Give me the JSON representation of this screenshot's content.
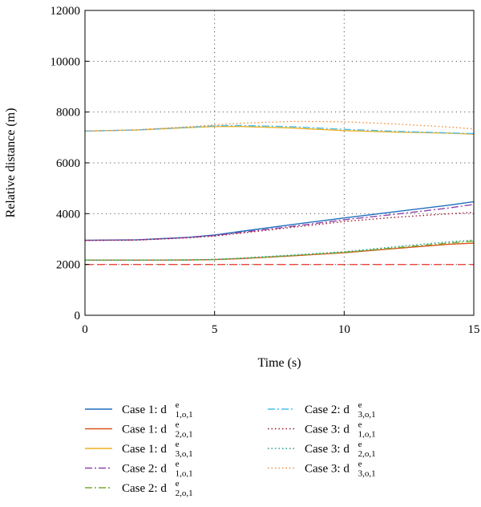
{
  "chart_data": {
    "type": "line",
    "xlabel": "Time (s)",
    "ylabel": "Relative distance (m)",
    "xlim": [
      0,
      15
    ],
    "ylim": [
      0,
      12000
    ],
    "x_ticks": [
      "0",
      "5",
      "10",
      "15"
    ],
    "y_ticks": [
      "0",
      "2000",
      "4000",
      "6000",
      "8000",
      "10000",
      "12000"
    ],
    "grid": "dotted, on major ticks",
    "legend": "below plot, two columns",
    "series": [
      {
        "name": "Case 1: d^e_{1,o,1}",
        "label_prefix": "Case 1: d",
        "label_sup": "e",
        "label_sub": "1,o,1",
        "color": "#1f6fbf",
        "dash": "solid",
        "x": [
          0,
          2,
          4,
          5,
          6,
          8,
          10,
          12,
          14,
          15
        ],
        "y": [
          2950,
          2970,
          3070,
          3160,
          3300,
          3570,
          3830,
          4080,
          4330,
          4470
        ]
      },
      {
        "name": "Case 1: d^e_{2,o,1}",
        "label_prefix": "Case 1: d",
        "label_sup": "e",
        "label_sub": "2,o,1",
        "color": "#d9541a",
        "dash": "solid",
        "x": [
          0,
          2,
          4,
          5,
          6,
          8,
          10,
          12,
          14,
          15
        ],
        "y": [
          2170,
          2170,
          2175,
          2190,
          2230,
          2340,
          2460,
          2630,
          2790,
          2840
        ]
      },
      {
        "name": "Case 1: d^e_{3,o,1}",
        "label_prefix": "Case 1: d",
        "label_sup": "e",
        "label_sub": "3,o,1",
        "color": "#edb120",
        "dash": "solid",
        "x": [
          0,
          2,
          4,
          5,
          6,
          8,
          10,
          12,
          14,
          15
        ],
        "y": [
          7250,
          7290,
          7390,
          7430,
          7430,
          7370,
          7270,
          7210,
          7170,
          7130
        ]
      },
      {
        "name": "Case 2: d^e_{1,o,1}",
        "label_prefix": "Case 2: d",
        "label_sup": "e",
        "label_sub": "1,o,1",
        "color": "#8e44ad",
        "dash": "dashdot",
        "x": [
          0,
          2,
          4,
          5,
          6,
          8,
          10,
          12,
          14,
          15
        ],
        "y": [
          2950,
          2965,
          3060,
          3140,
          3260,
          3500,
          3760,
          3980,
          4220,
          4360
        ]
      },
      {
        "name": "Case 2: d^e_{2,o,1}",
        "label_prefix": "Case 2: d",
        "label_sup": "e",
        "label_sub": "2,o,1",
        "color": "#77ac30",
        "dash": "dashdot",
        "x": [
          0,
          2,
          4,
          5,
          6,
          8,
          10,
          12,
          14,
          15
        ],
        "y": [
          2170,
          2170,
          2175,
          2195,
          2240,
          2350,
          2480,
          2660,
          2840,
          2920
        ]
      },
      {
        "name": "Case 2: d^e_{3,o,1}",
        "label_prefix": "Case 2: d",
        "label_sup": "e",
        "label_sub": "3,o,1",
        "color": "#4dbeee",
        "dash": "dashdot",
        "x": [
          0,
          2,
          4,
          5,
          6,
          8,
          10,
          12,
          14,
          15
        ],
        "y": [
          7250,
          7295,
          7400,
          7460,
          7470,
          7420,
          7320,
          7240,
          7180,
          7150
        ]
      },
      {
        "name": "Case 3: d^e_{1,o,1}",
        "label_prefix": "Case 3: d",
        "label_sup": "e",
        "label_sub": "1,o,1",
        "color": "#a2142f",
        "dash": "dotted",
        "x": [
          0,
          2,
          4,
          5,
          6,
          8,
          10,
          12,
          14,
          15
        ],
        "y": [
          2950,
          2960,
          3050,
          3120,
          3230,
          3460,
          3690,
          3860,
          3990,
          4050
        ]
      },
      {
        "name": "Case 3: d^e_{2,o,1}",
        "label_prefix": "Case 3: d",
        "label_sup": "e",
        "label_sub": "2,o,1",
        "color": "#1a9e8f",
        "dash": "dotted",
        "x": [
          0,
          2,
          4,
          5,
          6,
          8,
          10,
          12,
          14,
          15
        ],
        "y": [
          2170,
          2170,
          2180,
          2200,
          2250,
          2370,
          2500,
          2700,
          2890,
          2960
        ]
      },
      {
        "name": "Case 3: d^e_{3,o,1}",
        "label_prefix": "Case 3: d",
        "label_sup": "e",
        "label_sub": "3,o,1",
        "color": "#f08c3a",
        "dash": "dotted",
        "x": [
          0,
          2,
          4,
          5,
          6,
          8,
          10,
          12,
          14,
          15
        ],
        "y": [
          7250,
          7300,
          7420,
          7490,
          7560,
          7630,
          7620,
          7530,
          7410,
          7340
        ]
      }
    ],
    "reference_lines": [
      {
        "y": 2000,
        "color": "#e8453c",
        "dash": "dashed"
      }
    ]
  }
}
